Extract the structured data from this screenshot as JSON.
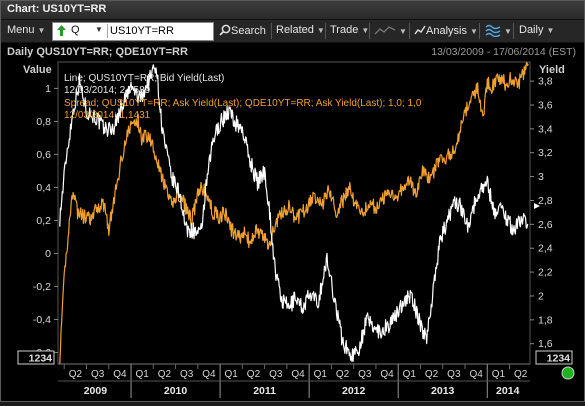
{
  "window": {
    "title": "Chart: US10YT=RR"
  },
  "toolbar": {
    "menu_label": "Menu",
    "ticker_type": "Q",
    "ticker_value": "US10YT=RR",
    "search_label": "Search",
    "related_label": "Related",
    "trade_label": "Trade",
    "analysis_label": "Analysis",
    "interval_label": "Daily"
  },
  "chart_header": {
    "title": "Daily QUS10YT=RR; QDE10YT=RR",
    "date_range": "13/03/2009 - 17/06/2014 (EST)"
  },
  "legend": {
    "line1_name": "Line; QUS10YT=RR; Bid Yield(Last)",
    "line1_value": "12/03/2014; 2,7589",
    "line2_name": "Spread; QUS10YT=RR; Ask Yield(Last); QDE10YT=RR; Ask Yield(Last);  1,0; 1,0",
    "line2_value": "12/03/2014; 1,1431"
  },
  "colors": {
    "us_yield": "#ffffff",
    "spread": "#f0a030",
    "background": "#000000",
    "status_ok": "#1fb41f"
  },
  "icons": [
    "up-arrow-icon",
    "search-icon",
    "analysis-icon",
    "spread-wave-icon",
    "status-indicator-icon"
  ],
  "chart_data": {
    "type": "line",
    "xlabel": "",
    "ylabel_left": "Value",
    "ylabel_right": "Yield",
    "x_start": "13/03/2009",
    "x_end": "17/06/2014",
    "left_axis": {
      "ticks": [
        "-0,6",
        "-0,4",
        "-0,2",
        "0",
        "0,2",
        "0,4",
        "0,6",
        "0,8",
        "1"
      ],
      "tick_values": [
        -0.6,
        -0.4,
        -0.2,
        0,
        0.2,
        0.4,
        0.6,
        0.8,
        1.0
      ],
      "ylim": [
        -0.67,
        1.16
      ],
      "box_label": "1234"
    },
    "right_axis": {
      "ticks": [
        "1,6",
        "1,8",
        "2",
        "2,2",
        "2,4",
        "2,6",
        "2,8",
        "3",
        "3,2",
        "3,4",
        "3,6",
        "3,8"
      ],
      "tick_values": [
        1.6,
        1.8,
        2.0,
        2.2,
        2.4,
        2.6,
        2.8,
        3.0,
        3.2,
        3.4,
        3.6,
        3.8
      ],
      "ylim": [
        1.43,
        3.96
      ],
      "box_label": "1234"
    },
    "quarter_labels": [
      "Q2",
      "Q3",
      "Q4",
      "Q1",
      "Q2",
      "Q3",
      "Q4",
      "Q1",
      "Q2",
      "Q3",
      "Q4",
      "Q1",
      "Q2",
      "Q3",
      "Q4",
      "Q1",
      "Q2",
      "Q3",
      "Q4",
      "Q1",
      "Q2"
    ],
    "year_labels": [
      "2009",
      "2010",
      "2011",
      "2012",
      "2013",
      "2014"
    ],
    "legend_position": "top-left",
    "grid": false,
    "series": [
      {
        "name": "Line; QUS10YT=RR; Bid Yield(Last)",
        "axis": "right",
        "color": "#ffffff",
        "points": [
          [
            2009.2,
            2.65
          ],
          [
            2009.27,
            3.15
          ],
          [
            2009.35,
            3.55
          ],
          [
            2009.42,
            3.8
          ],
          [
            2009.5,
            3.55
          ],
          [
            2009.6,
            3.5
          ],
          [
            2009.7,
            3.4
          ],
          [
            2009.8,
            3.4
          ],
          [
            2009.9,
            3.6
          ],
          [
            2010.0,
            3.75
          ],
          [
            2010.1,
            3.65
          ],
          [
            2010.2,
            3.8
          ],
          [
            2010.28,
            3.95
          ],
          [
            2010.35,
            3.4
          ],
          [
            2010.45,
            3.0
          ],
          [
            2010.55,
            2.85
          ],
          [
            2010.62,
            2.55
          ],
          [
            2010.7,
            2.55
          ],
          [
            2010.78,
            2.5
          ],
          [
            2010.85,
            2.95
          ],
          [
            2010.92,
            3.3
          ],
          [
            2011.0,
            3.45
          ],
          [
            2011.1,
            3.55
          ],
          [
            2011.17,
            3.45
          ],
          [
            2011.25,
            3.4
          ],
          [
            2011.33,
            3.15
          ],
          [
            2011.42,
            2.95
          ],
          [
            2011.5,
            3.05
          ],
          [
            2011.55,
            2.75
          ],
          [
            2011.62,
            2.2
          ],
          [
            2011.7,
            1.95
          ],
          [
            2011.78,
            1.9
          ],
          [
            2011.85,
            2.0
          ],
          [
            2011.92,
            1.9
          ],
          [
            2012.0,
            2.0
          ],
          [
            2012.1,
            1.95
          ],
          [
            2012.2,
            2.3
          ],
          [
            2012.28,
            2.0
          ],
          [
            2012.38,
            1.6
          ],
          [
            2012.48,
            1.5
          ],
          [
            2012.55,
            1.55
          ],
          [
            2012.65,
            1.8
          ],
          [
            2012.72,
            1.75
          ],
          [
            2012.8,
            1.7
          ],
          [
            2012.88,
            1.75
          ],
          [
            2012.95,
            1.8
          ],
          [
            2013.05,
            1.95
          ],
          [
            2013.15,
            2.0
          ],
          [
            2013.25,
            1.75
          ],
          [
            2013.32,
            1.65
          ],
          [
            2013.4,
            2.1
          ],
          [
            2013.48,
            2.5
          ],
          [
            2013.55,
            2.6
          ],
          [
            2013.62,
            2.8
          ],
          [
            2013.7,
            2.75
          ],
          [
            2013.78,
            2.6
          ],
          [
            2013.85,
            2.75
          ],
          [
            2013.92,
            2.9
          ],
          [
            2014.0,
            2.95
          ],
          [
            2014.08,
            2.7
          ],
          [
            2014.15,
            2.75
          ],
          [
            2014.22,
            2.65
          ],
          [
            2014.3,
            2.55
          ],
          [
            2014.38,
            2.65
          ],
          [
            2014.46,
            2.6
          ]
        ]
      },
      {
        "name": "Spread; QUS10YT=RR; Ask Yield(Last); QDE10YT=RR; Ask Yield(Last);  1,0; 1,0",
        "axis": "left",
        "color": "#f0a030",
        "points": [
          [
            2009.2,
            -0.65
          ],
          [
            2009.25,
            -0.15
          ],
          [
            2009.3,
            0.15
          ],
          [
            2009.35,
            0.4
          ],
          [
            2009.4,
            0.25
          ],
          [
            2009.48,
            0.22
          ],
          [
            2009.55,
            0.2
          ],
          [
            2009.62,
            0.28
          ],
          [
            2009.7,
            0.3
          ],
          [
            2009.75,
            0.15
          ],
          [
            2009.82,
            0.35
          ],
          [
            2009.9,
            0.6
          ],
          [
            2009.95,
            0.7
          ],
          [
            2010.0,
            0.78
          ],
          [
            2010.08,
            0.8
          ],
          [
            2010.12,
            0.7
          ],
          [
            2010.2,
            0.72
          ],
          [
            2010.28,
            0.6
          ],
          [
            2010.35,
            0.45
          ],
          [
            2010.45,
            0.3
          ],
          [
            2010.52,
            0.35
          ],
          [
            2010.6,
            0.3
          ],
          [
            2010.68,
            0.2
          ],
          [
            2010.75,
            0.35
          ],
          [
            2010.8,
            0.4
          ],
          [
            2010.85,
            0.35
          ],
          [
            2010.92,
            0.25
          ],
          [
            2011.0,
            0.22
          ],
          [
            2011.05,
            0.25
          ],
          [
            2011.12,
            0.15
          ],
          [
            2011.2,
            0.1
          ],
          [
            2011.28,
            0.12
          ],
          [
            2011.35,
            0.05
          ],
          [
            2011.4,
            0.15
          ],
          [
            2011.48,
            0.1
          ],
          [
            2011.55,
            0.05
          ],
          [
            2011.62,
            0.18
          ],
          [
            2011.7,
            0.25
          ],
          [
            2011.78,
            0.28
          ],
          [
            2011.85,
            0.2
          ],
          [
            2011.92,
            0.25
          ],
          [
            2012.0,
            0.3
          ],
          [
            2012.08,
            0.35
          ],
          [
            2012.15,
            0.3
          ],
          [
            2012.22,
            0.4
          ],
          [
            2012.3,
            0.25
          ],
          [
            2012.38,
            0.32
          ],
          [
            2012.45,
            0.4
          ],
          [
            2012.52,
            0.3
          ],
          [
            2012.6,
            0.25
          ],
          [
            2012.68,
            0.3
          ],
          [
            2012.75,
            0.28
          ],
          [
            2012.82,
            0.32
          ],
          [
            2012.9,
            0.38
          ],
          [
            2012.98,
            0.35
          ],
          [
            2013.05,
            0.4
          ],
          [
            2013.12,
            0.45
          ],
          [
            2013.2,
            0.35
          ],
          [
            2013.28,
            0.5
          ],
          [
            2013.35,
            0.45
          ],
          [
            2013.45,
            0.55
          ],
          [
            2013.52,
            0.58
          ],
          [
            2013.6,
            0.6
          ],
          [
            2013.68,
            0.7
          ],
          [
            2013.75,
            0.85
          ],
          [
            2013.82,
            0.95
          ],
          [
            2013.9,
            1.0
          ],
          [
            2013.95,
            0.8
          ],
          [
            2014.0,
            1.05
          ],
          [
            2014.05,
            1.0
          ],
          [
            2014.12,
            1.08
          ],
          [
            2014.2,
            1.03
          ],
          [
            2014.28,
            1.06
          ],
          [
            2014.36,
            1.04
          ],
          [
            2014.42,
            1.1
          ],
          [
            2014.46,
            1.15
          ]
        ]
      }
    ]
  }
}
